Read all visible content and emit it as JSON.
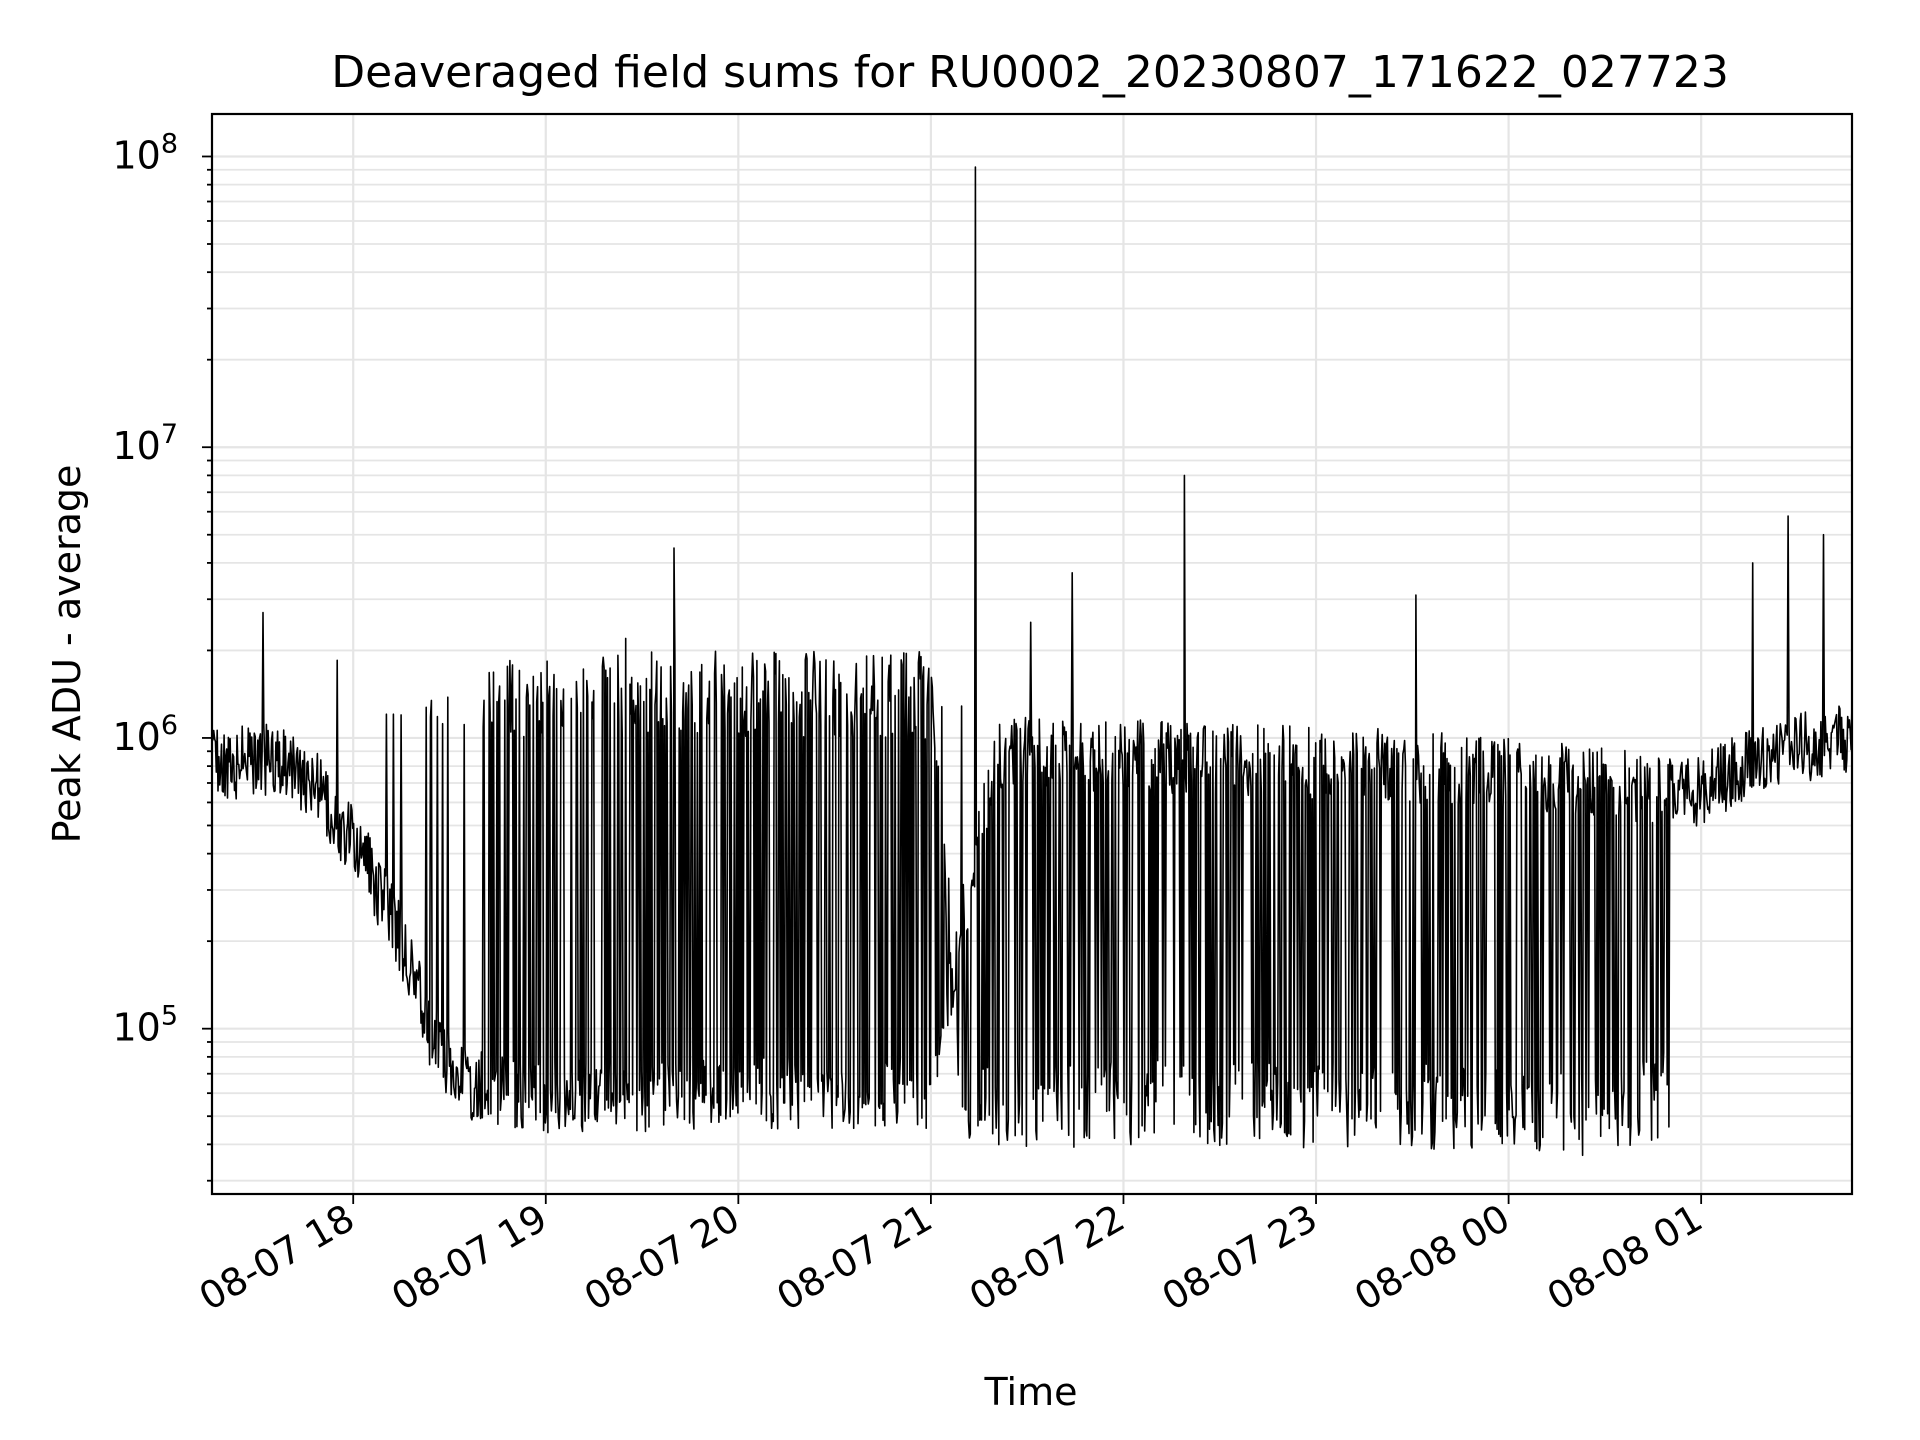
{
  "chart_data": {
    "type": "line",
    "title": "Deaveraged field sums for RU0002_20230807_171622_027723",
    "xlabel": "Time",
    "ylabel": "Peak ADU - average",
    "x_scale": "time",
    "y_scale": "log",
    "xlim": [
      "2023-08-07 17:16",
      "2023-08-08 01:47"
    ],
    "ylim": [
      27000,
      140000000
    ],
    "x_ticks": [
      "08-07 18",
      "08-07 19",
      "08-07 20",
      "08-07 21",
      "08-07 22",
      "08-07 23",
      "08-08 00",
      "08-08 01"
    ],
    "y_ticks": [
      {
        "base": "10",
        "exp": "5",
        "value": 100000
      },
      {
        "base": "10",
        "exp": "6",
        "value": 1000000
      },
      {
        "base": "10",
        "exp": "7",
        "value": 10000000
      },
      {
        "base": "10",
        "exp": "8",
        "value": 100000000
      }
    ],
    "grid": true,
    "line_color": "#000000",
    "grid_color": "#e5e5e5",
    "series": [
      {
        "time_start": "2023-08-07 17:16",
        "time_end": "2023-08-08 01:47",
        "baseline_profile": [
          [
            "2023-08-07 17:16",
            800000
          ],
          [
            "2023-08-07 17:35",
            850000
          ],
          [
            "2023-08-07 17:50",
            650000
          ],
          [
            "2023-08-07 18:05",
            350000
          ],
          [
            "2023-08-07 18:15",
            200000
          ],
          [
            "2023-08-07 18:25",
            90000
          ],
          [
            "2023-08-07 18:35",
            65000
          ],
          [
            "2023-08-07 19:00",
            58000
          ],
          [
            "2023-08-07 20:00",
            60000
          ],
          [
            "2023-08-07 21:00",
            60000
          ],
          [
            "2023-08-07 21:20",
            900000
          ],
          [
            "2023-08-07 23:30",
            800000
          ],
          [
            "2023-08-08 00:30",
            700000
          ],
          [
            "2023-08-08 01:00",
            650000
          ],
          [
            "2023-08-08 01:20",
            900000
          ],
          [
            "2023-08-08 01:47",
            1000000
          ]
        ],
        "dip_profile": [
          [
            "2023-08-07 18:40",
            1400000
          ],
          [
            "2023-08-07 19:00",
            1400000
          ],
          [
            "2023-08-07 19:10",
            1450000
          ],
          [
            "2023-08-07 21:00",
            1400000
          ],
          [
            "2023-08-07 21:10",
            55000
          ],
          [
            "2023-08-07 23:30",
            55000
          ],
          [
            "2023-08-08 00:30",
            50000
          ],
          [
            "2023-08-08 00:50",
            60000
          ]
        ],
        "spikes": [
          [
            "2023-08-07 17:32",
            2700000
          ],
          [
            "2023-08-07 17:55",
            1850000
          ],
          [
            "2023-08-07 18:15",
            1200000
          ],
          [
            "2023-08-07 19:25",
            2200000
          ],
          [
            "2023-08-07 19:40",
            4500000
          ],
          [
            "2023-08-07 21:14",
            92000000
          ],
          [
            "2023-08-07 21:31",
            2500000
          ],
          [
            "2023-08-07 21:44",
            3700000
          ],
          [
            "2023-08-07 22:19",
            8000000
          ],
          [
            "2023-08-07 23:31",
            3100000
          ],
          [
            "2023-08-08 01:16",
            4000000
          ],
          [
            "2023-08-08 01:27",
            5800000
          ],
          [
            "2023-08-08 01:38",
            5000000
          ]
        ]
      }
    ]
  }
}
